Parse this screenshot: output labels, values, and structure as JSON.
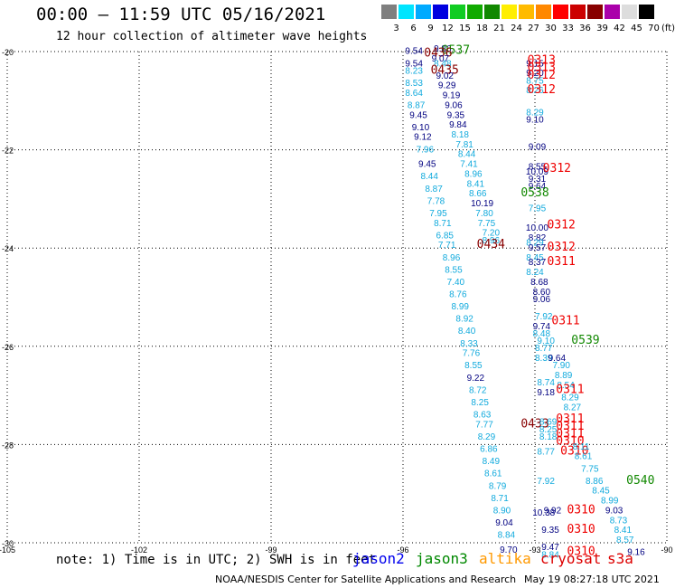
{
  "title": "00:00 – 11:59 UTC 05/16/2021",
  "subtitle": "12 hour collection of altimeter wave heights",
  "legend": {
    "labels": [
      "3",
      "6",
      "9",
      "12",
      "15",
      "18",
      "21",
      "24",
      "27",
      "30",
      "33",
      "36",
      "39",
      "42",
      "45",
      "70"
    ],
    "colors": [
      "#7f7f7f",
      "#00e5ff",
      "#00aaff",
      "#0000e0",
      "#11cc22",
      "#11aa00",
      "#118800",
      "#ffee00",
      "#ffbb00",
      "#ff8800",
      "#ff0000",
      "#cc0000",
      "#880000",
      "#aa00aa",
      "#dddddd",
      "#000000"
    ],
    "unit": "(ft)"
  },
  "axes": {
    "lon_ticks": [
      "-105",
      "-102",
      "-99",
      "-96",
      "-93",
      "-90"
    ],
    "lat_ticks": [
      "-20",
      "-22",
      "-24",
      "-26",
      "-28",
      "-30"
    ]
  },
  "colors": {
    "jason2": "#0000ee",
    "jason3": "#008800",
    "altika": "#ff9900",
    "cryosat": "#dd0000",
    "s3a": "#dd0000",
    "cyan": "#11aadd",
    "navy": "#000080",
    "darkred": "#880000",
    "green": "#118800",
    "red": "#ee0000"
  },
  "note": "note: 1) Time is in UTC; 2) SWH is in feet",
  "satellites": [
    "jason2",
    "jason3",
    "altika",
    "cryosat",
    "s3a"
  ],
  "credit": "NOAA/NESDIS Center for Satellite Applications and Research",
  "credit_date": "May 19 08:27:18 UTC 2021",
  "observations": [
    {
      "lon": -95.75,
      "lat": -20.05,
      "value": "9.54",
      "color": "navy"
    },
    {
      "lon": -95.1,
      "lat": -20.0,
      "value": "9.86",
      "color": "navy"
    },
    {
      "lon": -94.8,
      "lat": -20.05,
      "value": "0537",
      "color": "green"
    },
    {
      "lon": -95.2,
      "lat": -20.1,
      "value": "0436",
      "color": "darkred"
    },
    {
      "lon": -95.15,
      "lat": -20.2,
      "value": "9.07",
      "color": "navy"
    },
    {
      "lon": -95.75,
      "lat": -20.3,
      "value": "9.54",
      "color": "navy"
    },
    {
      "lon": -95.1,
      "lat": -20.3,
      "value": "8.48",
      "color": "cyan"
    },
    {
      "lon": -95.05,
      "lat": -20.45,
      "value": "0435",
      "color": "darkred"
    },
    {
      "lon": -95.75,
      "lat": -20.45,
      "value": "8.23",
      "color": "cyan"
    },
    {
      "lon": -95.05,
      "lat": -20.55,
      "value": "9.02",
      "color": "navy"
    },
    {
      "lon": -95.75,
      "lat": -20.7,
      "value": "8.53",
      "color": "cyan"
    },
    {
      "lon": -95.0,
      "lat": -20.75,
      "value": "9.29",
      "color": "navy"
    },
    {
      "lon": -95.75,
      "lat": -20.9,
      "value": "8.64",
      "color": "cyan"
    },
    {
      "lon": -94.9,
      "lat": -20.95,
      "value": "9.19",
      "color": "navy"
    },
    {
      "lon": -95.7,
      "lat": -21.15,
      "value": "8.87",
      "color": "cyan"
    },
    {
      "lon": -94.85,
      "lat": -21.15,
      "value": "9.06",
      "color": "navy"
    },
    {
      "lon": -95.65,
      "lat": -21.35,
      "value": "9.45",
      "color": "navy"
    },
    {
      "lon": -94.8,
      "lat": -21.35,
      "value": "9.35",
      "color": "navy"
    },
    {
      "lon": -94.75,
      "lat": -21.55,
      "value": "9.84",
      "color": "navy"
    },
    {
      "lon": -95.6,
      "lat": -21.6,
      "value": "9.10",
      "color": "navy"
    },
    {
      "lon": -94.7,
      "lat": -21.75,
      "value": "8.18",
      "color": "cyan"
    },
    {
      "lon": -95.55,
      "lat": -21.8,
      "value": "9.12",
      "color": "navy"
    },
    {
      "lon": -94.6,
      "lat": -21.95,
      "value": "7.81",
      "color": "cyan"
    },
    {
      "lon": -95.5,
      "lat": -22.05,
      "value": "7.96",
      "color": "cyan"
    },
    {
      "lon": -94.55,
      "lat": -22.15,
      "value": "8.44",
      "color": "cyan"
    },
    {
      "lon": -95.45,
      "lat": -22.35,
      "value": "9.45",
      "color": "navy"
    },
    {
      "lon": -94.5,
      "lat": -22.35,
      "value": "7.41",
      "color": "cyan"
    },
    {
      "lon": -95.4,
      "lat": -22.6,
      "value": "8.44",
      "color": "cyan"
    },
    {
      "lon": -94.4,
      "lat": -22.55,
      "value": "8.96",
      "color": "cyan"
    },
    {
      "lon": -95.3,
      "lat": -22.85,
      "value": "8.87",
      "color": "cyan"
    },
    {
      "lon": -94.35,
      "lat": -22.75,
      "value": "8.41",
      "color": "cyan"
    },
    {
      "lon": -94.3,
      "lat": -22.95,
      "value": "8.66",
      "color": "cyan"
    },
    {
      "lon": -95.25,
      "lat": -23.1,
      "value": "7.78",
      "color": "cyan"
    },
    {
      "lon": -94.2,
      "lat": -23.15,
      "value": "10.19",
      "color": "navy"
    },
    {
      "lon": -95.2,
      "lat": -23.35,
      "value": "7.95",
      "color": "cyan"
    },
    {
      "lon": -94.15,
      "lat": -23.35,
      "value": "7.80",
      "color": "cyan"
    },
    {
      "lon": -95.1,
      "lat": -23.55,
      "value": "8.71",
      "color": "cyan"
    },
    {
      "lon": -94.1,
      "lat": -23.55,
      "value": "7.75",
      "color": "cyan"
    },
    {
      "lon": -95.05,
      "lat": -23.8,
      "value": "6.85",
      "color": "cyan"
    },
    {
      "lon": -94.0,
      "lat": -23.75,
      "value": "7.20",
      "color": "cyan"
    },
    {
      "lon": -94.0,
      "lat": -23.9,
      "value": "8.96",
      "color": "cyan"
    },
    {
      "lon": -95.0,
      "lat": -24.0,
      "value": "7.71",
      "color": "cyan"
    },
    {
      "lon": -94.0,
      "lat": -24.0,
      "value": "0434",
      "color": "darkred"
    },
    {
      "lon": -94.9,
      "lat": -24.25,
      "value": "8.96",
      "color": "cyan"
    },
    {
      "lon": -94.85,
      "lat": -24.5,
      "value": "8.55",
      "color": "cyan"
    },
    {
      "lon": -94.8,
      "lat": -24.75,
      "value": "7.40",
      "color": "cyan"
    },
    {
      "lon": -94.75,
      "lat": -25.0,
      "value": "8.76",
      "color": "cyan"
    },
    {
      "lon": -94.7,
      "lat": -25.25,
      "value": "8.99",
      "color": "cyan"
    },
    {
      "lon": -94.6,
      "lat": -25.5,
      "value": "8.92",
      "color": "cyan"
    },
    {
      "lon": -94.55,
      "lat": -25.75,
      "value": "8.40",
      "color": "cyan"
    },
    {
      "lon": -94.5,
      "lat": -26.0,
      "value": "8.33",
      "color": "cyan"
    },
    {
      "lon": -94.45,
      "lat": -26.2,
      "value": "7.76",
      "color": "cyan"
    },
    {
      "lon": -94.4,
      "lat": -26.45,
      "value": "8.55",
      "color": "cyan"
    },
    {
      "lon": -94.35,
      "lat": -26.7,
      "value": "9.22",
      "color": "navy"
    },
    {
      "lon": -94.3,
      "lat": -26.95,
      "value": "8.72",
      "color": "cyan"
    },
    {
      "lon": -94.25,
      "lat": -27.2,
      "value": "8.25",
      "color": "cyan"
    },
    {
      "lon": -94.2,
      "lat": -27.45,
      "value": "8.63",
      "color": "cyan"
    },
    {
      "lon": -94.15,
      "lat": -27.65,
      "value": "7.77",
      "color": "cyan"
    },
    {
      "lon": -94.1,
      "lat": -27.9,
      "value": "8.29",
      "color": "cyan"
    },
    {
      "lon": -94.05,
      "lat": -28.15,
      "value": "6.86",
      "color": "cyan"
    },
    {
      "lon": -94.0,
      "lat": -28.4,
      "value": "8.49",
      "color": "cyan"
    },
    {
      "lon": -93.95,
      "lat": -28.65,
      "value": "8.61",
      "color": "cyan"
    },
    {
      "lon": -93.85,
      "lat": -28.9,
      "value": "8.79",
      "color": "cyan"
    },
    {
      "lon": -93.8,
      "lat": -29.15,
      "value": "8.71",
      "color": "cyan"
    },
    {
      "lon": -93.75,
      "lat": -29.4,
      "value": "8.90",
      "color": "cyan"
    },
    {
      "lon": -93.7,
      "lat": -29.65,
      "value": "9.04",
      "color": "navy"
    },
    {
      "lon": -93.65,
      "lat": -29.9,
      "value": "8.84",
      "color": "cyan"
    },
    {
      "lon": -93.6,
      "lat": -30.2,
      "value": "9.70",
      "color": "navy"
    },
    {
      "lon": -93.0,
      "lat": -20.3,
      "value": "9.15",
      "color": "navy"
    },
    {
      "lon": -92.85,
      "lat": -20.25,
      "value": "0313",
      "color": "red"
    },
    {
      "lon": -92.85,
      "lat": -20.4,
      "value": "0313",
      "color": "red"
    },
    {
      "lon": -93.0,
      "lat": -20.5,
      "value": "9.20",
      "color": "navy"
    },
    {
      "lon": -92.85,
      "lat": -20.55,
      "value": "0312",
      "color": "red"
    },
    {
      "lon": -93.0,
      "lat": -20.65,
      "value": "8.75",
      "color": "cyan"
    },
    {
      "lon": -93.0,
      "lat": -20.85,
      "value": "8.26",
      "color": "cyan"
    },
    {
      "lon": -92.85,
      "lat": -20.85,
      "value": "0312",
      "color": "red"
    },
    {
      "lon": -93.0,
      "lat": -21.3,
      "value": "8.29",
      "color": "cyan"
    },
    {
      "lon": -93.0,
      "lat": -21.45,
      "value": "9.10",
      "color": "navy"
    },
    {
      "lon": -92.95,
      "lat": -22.0,
      "value": "9.09",
      "color": "navy"
    },
    {
      "lon": -92.95,
      "lat": -22.4,
      "value": "8.55",
      "color": "navy"
    },
    {
      "lon": -92.95,
      "lat": -22.5,
      "value": "10.09",
      "color": "navy"
    },
    {
      "lon": -92.5,
      "lat": -22.45,
      "value": "0312",
      "color": "red"
    },
    {
      "lon": -92.95,
      "lat": -22.65,
      "value": "9.31",
      "color": "navy"
    },
    {
      "lon": -92.95,
      "lat": -22.8,
      "value": "9.64",
      "color": "navy"
    },
    {
      "lon": -93.0,
      "lat": -22.95,
      "value": "0538",
      "color": "green"
    },
    {
      "lon": -92.95,
      "lat": -23.25,
      "value": "7.95",
      "color": "cyan"
    },
    {
      "lon": -92.95,
      "lat": -23.65,
      "value": "10.00",
      "color": "navy"
    },
    {
      "lon": -92.4,
      "lat": -23.6,
      "value": "0312",
      "color": "red"
    },
    {
      "lon": -92.95,
      "lat": -23.85,
      "value": "8.82",
      "color": "navy"
    },
    {
      "lon": -93.0,
      "lat": -23.95,
      "value": "8.29",
      "color": "cyan"
    },
    {
      "lon": -92.95,
      "lat": -24.05,
      "value": "9.57",
      "color": "navy"
    },
    {
      "lon": -92.4,
      "lat": -24.05,
      "value": "0312",
      "color": "red"
    },
    {
      "lon": -93.0,
      "lat": -24.25,
      "value": "8.45",
      "color": "cyan"
    },
    {
      "lon": -92.95,
      "lat": -24.35,
      "value": "8.37",
      "color": "navy"
    },
    {
      "lon": -92.4,
      "lat": -24.35,
      "value": "0311",
      "color": "red"
    },
    {
      "lon": -93.0,
      "lat": -24.55,
      "value": "8.24",
      "color": "cyan"
    },
    {
      "lon": -92.9,
      "lat": -24.75,
      "value": "8.68",
      "color": "navy"
    },
    {
      "lon": -92.85,
      "lat": -24.95,
      "value": "8.60",
      "color": "navy"
    },
    {
      "lon": -92.85,
      "lat": -25.1,
      "value": "9.06",
      "color": "navy"
    },
    {
      "lon": -92.8,
      "lat": -25.45,
      "value": "7.92",
      "color": "cyan"
    },
    {
      "lon": -92.85,
      "lat": -25.65,
      "value": "9.74",
      "color": "navy"
    },
    {
      "lon": -92.3,
      "lat": -25.55,
      "value": "0311",
      "color": "red"
    },
    {
      "lon": -92.85,
      "lat": -25.8,
      "value": "8.48",
      "color": "cyan"
    },
    {
      "lon": -92.75,
      "lat": -25.95,
      "value": "9.10",
      "color": "cyan"
    },
    {
      "lon": -91.85,
      "lat": -25.95,
      "value": "0539",
      "color": "green"
    },
    {
      "lon": -92.8,
      "lat": -26.1,
      "value": "8.77",
      "color": "cyan"
    },
    {
      "lon": -92.8,
      "lat": -26.3,
      "value": "8.39",
      "color": "cyan"
    },
    {
      "lon": -92.5,
      "lat": -26.3,
      "value": "9.64",
      "color": "navy"
    },
    {
      "lon": -92.4,
      "lat": -26.45,
      "value": "7.90",
      "color": "cyan"
    },
    {
      "lon": -92.35,
      "lat": -26.65,
      "value": "8.89",
      "color": "cyan"
    },
    {
      "lon": -92.75,
      "lat": -26.8,
      "value": "8.74",
      "color": "cyan"
    },
    {
      "lon": -92.3,
      "lat": -26.85,
      "value": "8.54",
      "color": "cyan"
    },
    {
      "lon": -92.75,
      "lat": -27.0,
      "value": "9.18",
      "color": "navy"
    },
    {
      "lon": -92.2,
      "lat": -26.95,
      "value": "0311",
      "color": "red"
    },
    {
      "lon": -92.2,
      "lat": -27.1,
      "value": "8.29",
      "color": "cyan"
    },
    {
      "lon": -92.15,
      "lat": -27.3,
      "value": "8.27",
      "color": "cyan"
    },
    {
      "lon": -93.0,
      "lat": -27.65,
      "value": "0433",
      "color": "darkred"
    },
    {
      "lon": -92.7,
      "lat": -27.6,
      "value": "8.69",
      "color": "cyan"
    },
    {
      "lon": -92.2,
      "lat": -27.55,
      "value": "0311",
      "color": "red"
    },
    {
      "lon": -92.7,
      "lat": -27.75,
      "value": "8.25",
      "color": "cyan"
    },
    {
      "lon": -92.2,
      "lat": -27.7,
      "value": "0311",
      "color": "red"
    },
    {
      "lon": -92.7,
      "lat": -27.9,
      "value": "8.18",
      "color": "cyan"
    },
    {
      "lon": -92.2,
      "lat": -27.85,
      "value": "0311",
      "color": "red"
    },
    {
      "lon": -92.2,
      "lat": -28.0,
      "value": "0310",
      "color": "red"
    },
    {
      "lon": -92.75,
      "lat": -28.2,
      "value": "8.77",
      "color": "cyan"
    },
    {
      "lon": -92.1,
      "lat": -28.2,
      "value": "0310",
      "color": "red"
    },
    {
      "lon": -91.95,
      "lat": -28.1,
      "value": "8.11",
      "color": "cyan"
    },
    {
      "lon": -91.9,
      "lat": -28.3,
      "value": "8.61",
      "color": "cyan"
    },
    {
      "lon": -91.75,
      "lat": -28.55,
      "value": "7.75",
      "color": "cyan"
    },
    {
      "lon": -92.75,
      "lat": -28.8,
      "value": "7.92",
      "color": "cyan"
    },
    {
      "lon": -91.65,
      "lat": -28.8,
      "value": "8.86",
      "color": "cyan"
    },
    {
      "lon": -90.6,
      "lat": -28.8,
      "value": "0540",
      "color": "green"
    },
    {
      "lon": -91.5,
      "lat": -29.0,
      "value": "8.45",
      "color": "cyan"
    },
    {
      "lon": -91.3,
      "lat": -29.2,
      "value": "8.99",
      "color": "cyan"
    },
    {
      "lon": -92.6,
      "lat": -29.4,
      "value": "9.92",
      "color": "navy"
    },
    {
      "lon": -92.8,
      "lat": -29.45,
      "value": "10.38",
      "color": "navy"
    },
    {
      "lon": -91.95,
      "lat": -29.4,
      "value": "0310",
      "color": "red"
    },
    {
      "lon": -91.2,
      "lat": -29.4,
      "value": "9.03",
      "color": "navy"
    },
    {
      "lon": -91.1,
      "lat": -29.6,
      "value": "8.73",
      "color": "cyan"
    },
    {
      "lon": -92.65,
      "lat": -29.8,
      "value": "9.35",
      "color": "navy"
    },
    {
      "lon": -91.95,
      "lat": -29.8,
      "value": "0310",
      "color": "red"
    },
    {
      "lon": -91.0,
      "lat": -29.8,
      "value": "8.41",
      "color": "cyan"
    },
    {
      "lon": -90.95,
      "lat": -30.0,
      "value": "8.57",
      "color": "cyan"
    },
    {
      "lon": -92.65,
      "lat": -30.15,
      "value": "9.47",
      "color": "navy"
    },
    {
      "lon": -92.65,
      "lat": -30.3,
      "value": "8.84",
      "color": "cyan"
    },
    {
      "lon": -91.95,
      "lat": -30.25,
      "value": "0310",
      "color": "red"
    },
    {
      "lon": -90.7,
      "lat": -30.25,
      "value": "9.16",
      "color": "navy"
    }
  ]
}
